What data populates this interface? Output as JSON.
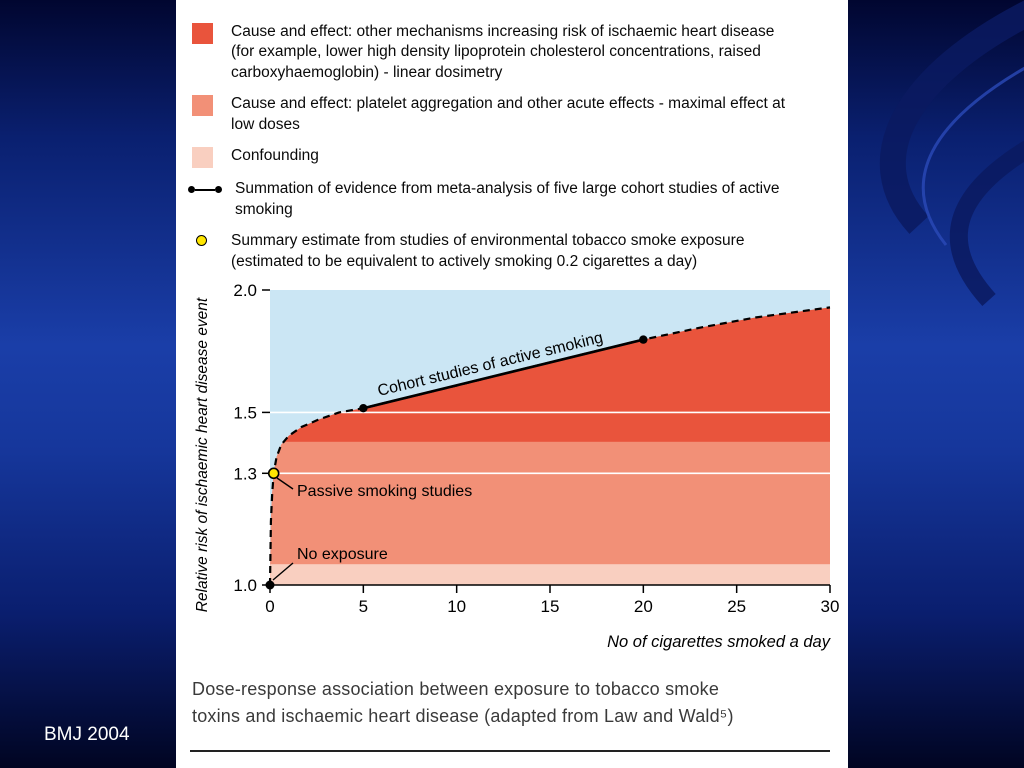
{
  "slide": {
    "footer": "BMJ 2004"
  },
  "colors": {
    "red": "#e9543c",
    "salmon": "#f29077",
    "pink": "#f9cfc0",
    "plot_bg": "#cbe6f4",
    "yellow_dot": "#ffe600"
  },
  "legend": {
    "items": [
      {
        "swatch": "red-square",
        "label": "Cause and effect: other mechanisms increasing risk of ischaemic heart disease (for example, lower high density lipoprotein cholesterol concentrations, raised carboxyhaemoglobin) - linear dosimetry"
      },
      {
        "swatch": "salmon-square",
        "label": "Cause and effect: platelet aggregation and other acute effects  - maximal effect at low doses"
      },
      {
        "swatch": "pink-square",
        "label": "Confounding"
      },
      {
        "swatch": "line-dots",
        "label": "Summation of evidence from meta-analysis of five large cohort studies of active smoking"
      },
      {
        "swatch": "yellow-dot",
        "label": "Summary estimate from studies of environmental tobacco smoke exposure (estimated to be equivalent to actively smoking 0.2 cigarettes a day)"
      }
    ]
  },
  "chart_data": {
    "type": "area",
    "title": "",
    "xlabel": "No of cigarettes smoked a day",
    "ylabel": "Relative risk of ischaemic heart disease event",
    "xlim": [
      0,
      30
    ],
    "ylim": [
      1.0,
      2.0
    ],
    "yscale": "log",
    "xticks": [
      0,
      5,
      10,
      15,
      20,
      25,
      30
    ],
    "yticks": [
      1.0,
      1.3,
      1.5,
      2.0
    ],
    "gridlines_y": [
      1.3,
      1.5
    ],
    "plot_bg": "#cbe6f4",
    "curve": {
      "name": "dose-response boundary (dashed)",
      "x": [
        0,
        0.05,
        0.12,
        0.2,
        0.35,
        0.6,
        1.0,
        1.7,
        2.6,
        3.7,
        5,
        7.5,
        10,
        12.5,
        15,
        17.5,
        20,
        23,
        26,
        30
      ],
      "y": [
        1.0,
        1.16,
        1.24,
        1.3,
        1.35,
        1.39,
        1.42,
        1.45,
        1.475,
        1.5,
        1.515,
        1.556,
        1.598,
        1.642,
        1.687,
        1.733,
        1.78,
        1.83,
        1.875,
        1.92
      ]
    },
    "bands": [
      {
        "name": "Confounding",
        "from": 1.0,
        "to": 1.05,
        "color": "#f9cfc0"
      },
      {
        "name": "Platelet aggregation and other acute effects",
        "from": 1.05,
        "to": 1.4,
        "color": "#f29077"
      },
      {
        "name": "Other mechanisms - linear dosimetry",
        "from": 1.4,
        "to": "curve",
        "color": "#e9543c"
      }
    ],
    "cohort_line": {
      "label": "Cohort studies of active smoking",
      "x": [
        5,
        20
      ],
      "y": [
        1.515,
        1.78
      ]
    },
    "points": [
      {
        "label": "No exposure",
        "x": 0,
        "y": 1.0,
        "style": "black"
      },
      {
        "label": "Passive smoking studies",
        "x": 0.2,
        "y": 1.3,
        "style": "yellow"
      }
    ]
  },
  "caption": "Dose-response association between exposure to tobacco smoke toxins and ischaemic heart disease (adapted from Law and Wald⁵)"
}
